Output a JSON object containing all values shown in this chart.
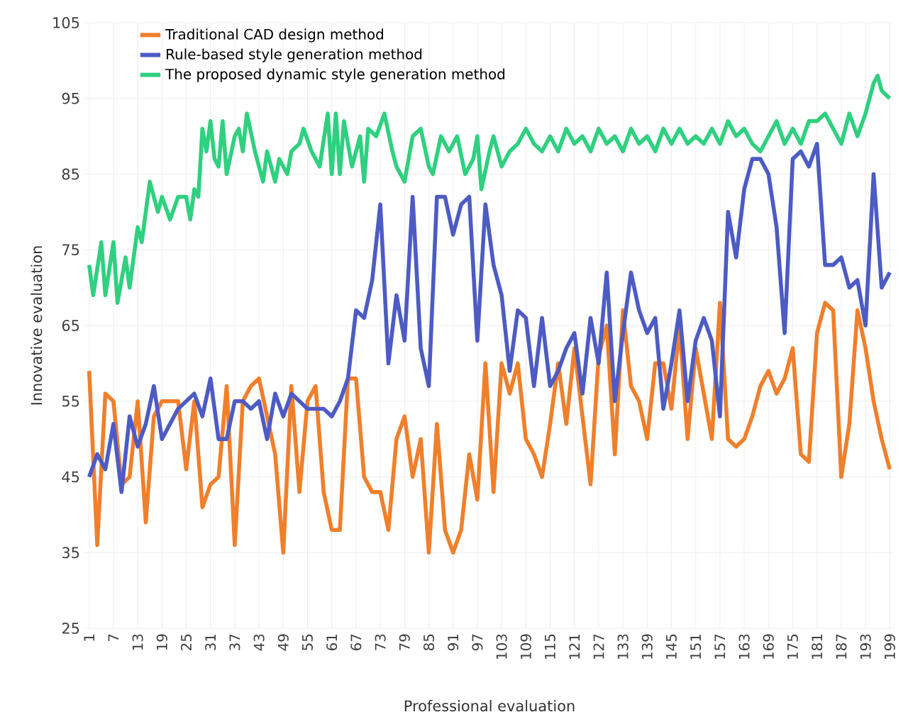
{
  "chart_data": {
    "type": "line",
    "xlabel": "Professional evaluation",
    "ylabel": "Innovative evaluation",
    "xlim": [
      0,
      200
    ],
    "ylim": [
      25,
      105
    ],
    "xticks": [
      1,
      7,
      13,
      19,
      25,
      31,
      37,
      43,
      49,
      55,
      61,
      67,
      73,
      79,
      85,
      91,
      97,
      103,
      109,
      115,
      121,
      127,
      133,
      139,
      145,
      151,
      157,
      163,
      169,
      175,
      181,
      187,
      193,
      199
    ],
    "yticks": [
      25,
      35,
      45,
      55,
      65,
      75,
      85,
      95,
      105
    ],
    "grid": true,
    "legend": "top left",
    "marker": "none",
    "line_style": "solid",
    "series": [
      {
        "name": "Traditional CAD design method",
        "color": "#f07f2b",
        "x": [
          1,
          3,
          5,
          7,
          9,
          11,
          13,
          15,
          17,
          19,
          21,
          23,
          25,
          27,
          29,
          31,
          33,
          35,
          37,
          39,
          41,
          43,
          45,
          47,
          49,
          51,
          53,
          55,
          57,
          59,
          61,
          63,
          65,
          67,
          69,
          71,
          73,
          75,
          77,
          79,
          81,
          83,
          85,
          87,
          89,
          91,
          93,
          95,
          97,
          99,
          101,
          103,
          105,
          107,
          109,
          111,
          113,
          115,
          117,
          119,
          121,
          123,
          125,
          127,
          129,
          131,
          133,
          135,
          137,
          139,
          141,
          143,
          145,
          147,
          149,
          151,
          153,
          155,
          157,
          159,
          161,
          163,
          165,
          167,
          169,
          171,
          173,
          175,
          177,
          179,
          181,
          183,
          185,
          187,
          189,
          191,
          193,
          195,
          197,
          199
        ],
        "values": [
          59,
          36,
          56,
          55,
          44,
          45,
          55,
          39,
          53,
          55,
          55,
          55,
          46,
          55,
          41,
          44,
          45,
          57,
          36,
          55,
          57,
          58,
          53,
          48,
          35,
          57,
          43,
          55,
          57,
          43,
          38,
          38,
          58,
          58,
          45,
          43,
          43,
          38,
          50,
          53,
          45,
          50,
          35,
          52,
          38,
          35,
          38,
          48,
          42,
          60,
          43,
          60,
          56,
          60,
          50,
          48,
          45,
          52,
          60,
          52,
          62,
          53,
          44,
          61,
          65,
          48,
          67,
          57,
          55,
          50,
          60,
          60,
          54,
          65,
          50,
          62,
          56,
          50,
          68,
          50,
          49,
          50,
          53,
          57,
          59,
          56,
          58,
          62,
          48,
          47,
          64,
          68,
          67,
          45,
          52,
          67,
          62,
          55,
          50,
          46
        ]
      },
      {
        "name": "Rule-based style generation method",
        "color": "#4d5bc4",
        "x": [
          1,
          3,
          5,
          7,
          9,
          11,
          13,
          15,
          17,
          19,
          21,
          23,
          25,
          27,
          29,
          31,
          33,
          35,
          37,
          39,
          41,
          43,
          45,
          47,
          49,
          51,
          53,
          55,
          57,
          59,
          61,
          63,
          65,
          67,
          69,
          71,
          73,
          75,
          77,
          79,
          81,
          83,
          85,
          87,
          89,
          91,
          93,
          95,
          97,
          99,
          101,
          103,
          105,
          107,
          109,
          111,
          113,
          115,
          117,
          119,
          121,
          123,
          125,
          127,
          129,
          131,
          133,
          135,
          137,
          139,
          141,
          143,
          145,
          147,
          149,
          151,
          153,
          155,
          157,
          159,
          161,
          163,
          165,
          167,
          169,
          171,
          173,
          175,
          177,
          179,
          181,
          183,
          185,
          187,
          189,
          191,
          193,
          195,
          197,
          199
        ],
        "values": [
          45,
          48,
          46,
          52,
          43,
          53,
          49,
          52,
          57,
          50,
          52,
          54,
          55,
          56,
          53,
          58,
          50,
          50,
          55,
          55,
          54,
          55,
          50,
          56,
          53,
          56,
          55,
          54,
          54,
          54,
          53,
          55,
          58,
          67,
          66,
          71,
          81,
          60,
          69,
          63,
          82,
          62,
          57,
          82,
          82,
          77,
          81,
          82,
          63,
          81,
          73,
          69,
          59,
          67,
          66,
          57,
          66,
          57,
          59,
          62,
          64,
          56,
          66,
          60,
          72,
          55,
          64,
          72,
          67,
          64,
          66,
          54,
          60,
          67,
          55,
          63,
          66,
          63,
          53,
          80,
          74,
          83,
          87,
          87,
          85,
          78,
          64,
          87,
          88,
          86,
          89,
          73,
          73,
          74,
          70,
          71,
          65,
          85,
          70,
          72
        ]
      },
      {
        "name": "The proposed dynamic style generation method",
        "color": "#2fd07f",
        "x": [
          1,
          2,
          4,
          5,
          7,
          8,
          10,
          11,
          13,
          14,
          16,
          18,
          19,
          21,
          23,
          25,
          26,
          27,
          28,
          29,
          30,
          31,
          32,
          33,
          34,
          35,
          37,
          38,
          39,
          40,
          42,
          44,
          45,
          47,
          48,
          50,
          51,
          53,
          54,
          56,
          58,
          60,
          61,
          62,
          63,
          64,
          66,
          68,
          69,
          70,
          72,
          74,
          76,
          77,
          79,
          81,
          83,
          85,
          86,
          88,
          90,
          92,
          94,
          96,
          97,
          98,
          100,
          101,
          103,
          105,
          107,
          109,
          111,
          113,
          115,
          117,
          119,
          121,
          123,
          125,
          127,
          129,
          131,
          133,
          135,
          137,
          139,
          141,
          143,
          145,
          147,
          149,
          151,
          153,
          155,
          157,
          159,
          161,
          163,
          165,
          167,
          169,
          171,
          173,
          175,
          177,
          179,
          181,
          183,
          185,
          187,
          189,
          191,
          193,
          195,
          196,
          197,
          199
        ],
        "values": [
          73,
          69,
          76,
          69,
          76,
          68,
          74,
          70,
          78,
          76,
          84,
          80,
          82,
          79,
          82,
          82,
          79,
          83,
          82,
          91,
          88,
          92,
          87,
          86,
          92,
          85,
          90,
          91,
          88,
          93,
          88,
          84,
          88,
          84,
          87,
          85,
          88,
          89,
          91,
          88,
          86,
          93,
          85,
          93,
          85,
          92,
          86,
          90,
          84,
          91,
          90,
          93,
          88,
          86,
          84,
          90,
          91,
          86,
          85,
          90,
          88,
          90,
          85,
          87,
          90,
          83,
          88,
          90,
          86,
          88,
          89,
          91,
          89,
          88,
          90,
          88,
          91,
          89,
          90,
          88,
          91,
          89,
          90,
          88,
          91,
          89,
          90,
          88,
          91,
          89,
          91,
          89,
          90,
          89,
          91,
          89,
          92,
          90,
          91,
          89,
          88,
          90,
          92,
          89,
          91,
          89,
          92,
          92,
          93,
          91,
          89,
          93,
          90,
          93,
          97,
          98,
          96,
          95
        ]
      }
    ]
  }
}
